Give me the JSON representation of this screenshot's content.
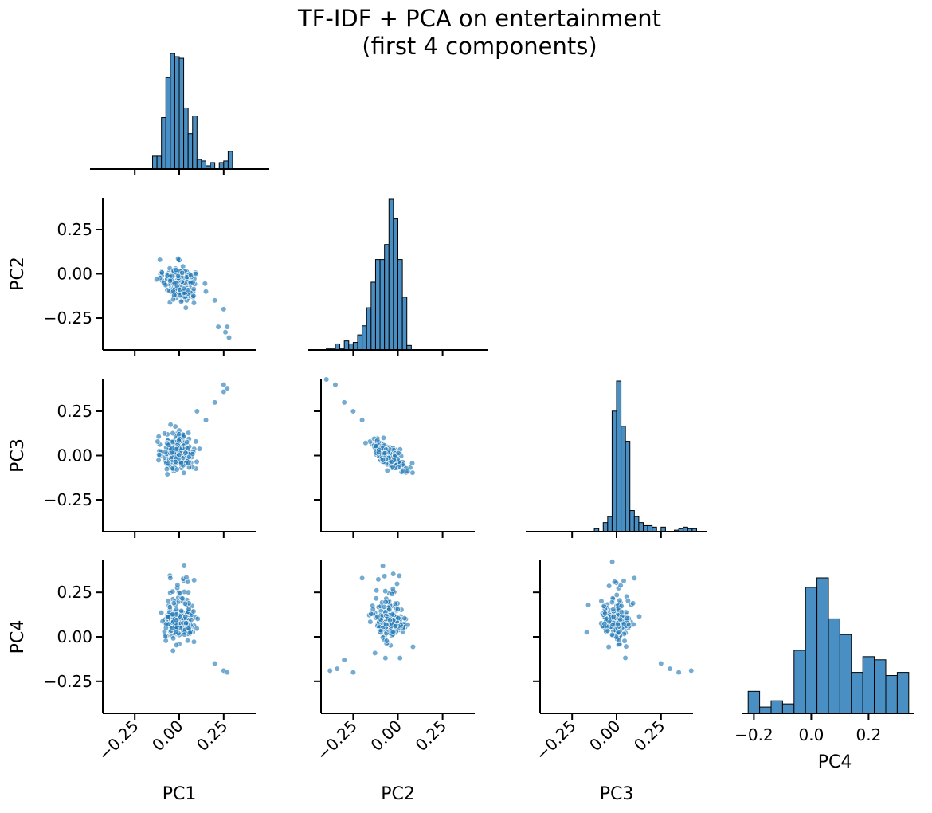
{
  "title_line1": "TF-IDF + PCA on entertainment",
  "title_line2": "(first 4 components)",
  "chart_data": {
    "type": "pairplot",
    "title": "TF-IDF + PCA on entertainment (first 4 components)",
    "variables": [
      "PC1",
      "PC2",
      "PC3",
      "PC4"
    ],
    "tick_labels": [
      "−0.25",
      "0.00",
      "0.25"
    ],
    "pc4_hist_tick_labels": [
      "−0.2",
      "0.0",
      "0.2"
    ],
    "axis_range": [
      -0.43,
      0.43
    ],
    "pc4_hist_range": [
      -0.24,
      0.36
    ],
    "grid": false,
    "legend": "none",
    "colors": {
      "marker": "#1f77b4",
      "bar_fill": "#4a8fc4",
      "bar_edge": "#000000",
      "axis": "#000000"
    },
    "histograms": {
      "PC1": {
        "bin_edges": [
          -0.15,
          -0.125,
          -0.1,
          -0.075,
          -0.05,
          -0.025,
          0.0,
          0.025,
          0.05,
          0.075,
          0.1,
          0.125,
          0.15,
          0.175,
          0.2,
          0.225,
          0.25,
          0.275,
          0.3
        ],
        "counts": [
          8,
          8,
          32,
          57,
          72,
          70,
          69,
          38,
          22,
          33,
          6,
          5,
          2,
          4,
          0,
          4,
          5,
          11
        ]
      },
      "PC2": {
        "bin_edges": [
          -0.4,
          -0.375,
          -0.35,
          -0.325,
          -0.3,
          -0.275,
          -0.25,
          -0.225,
          -0.2,
          -0.175,
          -0.15,
          -0.125,
          -0.1,
          -0.075,
          -0.05,
          -0.025,
          0.0,
          0.025,
          0.05,
          0.075
        ],
        "counts": [
          1,
          1,
          4,
          1,
          6,
          4,
          5,
          10,
          16,
          28,
          45,
          60,
          60,
          70,
          100,
          87,
          60,
          35,
          3
        ]
      },
      "PC3": {
        "bin_edges": [
          -0.125,
          -0.1,
          -0.075,
          -0.05,
          -0.025,
          0.0,
          0.025,
          0.05,
          0.075,
          0.1,
          0.125,
          0.15,
          0.175,
          0.2,
          0.225,
          0.25,
          0.275,
          0.3,
          0.325,
          0.35,
          0.375,
          0.4,
          0.425,
          0.45
        ],
        "counts": [
          2,
          0,
          6,
          10,
          80,
          100,
          70,
          60,
          14,
          10,
          6,
          4,
          4,
          3,
          0,
          3,
          0,
          0,
          1,
          2,
          3,
          2,
          2,
          1
        ]
      },
      "PC4": {
        "bin_edges": [
          -0.22,
          -0.18,
          -0.14,
          -0.1,
          -0.06,
          -0.02,
          0.02,
          0.06,
          0.1,
          0.14,
          0.18,
          0.22,
          0.26,
          0.3,
          0.34
        ],
        "counts": [
          7,
          2,
          4,
          3,
          20,
          40,
          43,
          30,
          25,
          13,
          18,
          17,
          12,
          13,
          4
        ]
      }
    },
    "scatter_summary": {
      "PC1_vs_PC2": {
        "core": [
          0.0,
          -0.05
        ],
        "outliers": [
          [
            0.15,
            -0.1
          ],
          [
            0.2,
            -0.15
          ],
          [
            0.25,
            -0.2
          ],
          [
            0.22,
            -0.3
          ],
          [
            0.27,
            -0.3
          ],
          [
            0.28,
            -0.36
          ],
          [
            0.26,
            -0.33
          ]
        ]
      },
      "PC1_vs_PC3": {
        "core": [
          0.0,
          0.02
        ],
        "outliers": [
          [
            0.1,
            0.25
          ],
          [
            0.15,
            0.2
          ],
          [
            0.2,
            0.3
          ],
          [
            0.25,
            0.36
          ],
          [
            0.27,
            0.38
          ],
          [
            0.25,
            0.4
          ]
        ]
      },
      "PC2_vs_PC3": {
        "core": [
          -0.05,
          0.0
        ],
        "outliers": [
          [
            -0.4,
            0.43
          ],
          [
            -0.35,
            0.4
          ],
          [
            -0.3,
            0.3
          ],
          [
            -0.25,
            0.25
          ],
          [
            -0.2,
            0.2
          ]
        ]
      },
      "PC1_vs_PC4": {
        "core": [
          0.0,
          0.06
        ],
        "outliers": [
          [
            0.2,
            -0.15
          ],
          [
            0.25,
            -0.19
          ],
          [
            0.27,
            -0.2
          ],
          [
            -0.05,
            0.33
          ]
        ]
      },
      "PC2_vs_PC4": {
        "core": [
          -0.05,
          0.05
        ],
        "outliers": [
          [
            -0.38,
            -0.19
          ],
          [
            -0.34,
            -0.18
          ],
          [
            -0.25,
            -0.2
          ],
          [
            -0.3,
            -0.13
          ],
          [
            -0.2,
            0.33
          ]
        ]
      },
      "PC3_vs_PC4": {
        "core": [
          0.0,
          0.05
        ],
        "outliers": [
          [
            0.25,
            -0.15
          ],
          [
            0.3,
            -0.18
          ],
          [
            0.35,
            -0.2
          ],
          [
            0.42,
            -0.19
          ],
          [
            0.1,
            0.33
          ]
        ]
      }
    }
  }
}
